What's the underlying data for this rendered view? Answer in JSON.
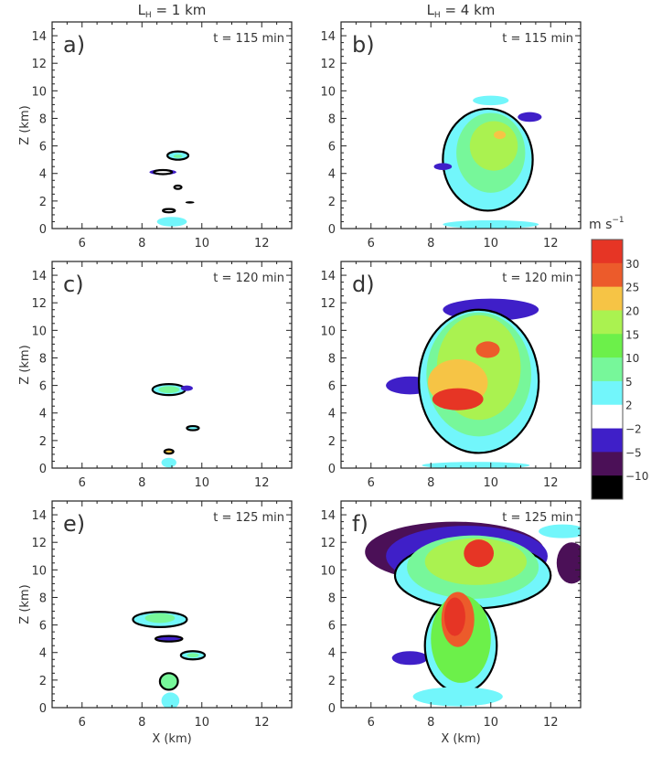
{
  "chart_data": {
    "type": "heatmap",
    "column_titles": [
      {
        "main": "L",
        "sub": "H",
        "rest": " = 1 km"
      },
      {
        "main": "L",
        "sub": "H",
        "rest": " = 4 km"
      }
    ],
    "xlabel": "X (km)",
    "ylabel": "Z (km)",
    "xlim": [
      5,
      13
    ],
    "ylim": [
      0,
      15
    ],
    "xticks": [
      6,
      8,
      10,
      12
    ],
    "yticks": [
      0,
      2,
      4,
      6,
      8,
      10,
      12,
      14
    ],
    "colorbar": {
      "unit_main": "m s",
      "unit_exp": "−1",
      "boundaries": [
        "30",
        "25",
        "20",
        "15",
        "10",
        "5",
        "2",
        "−2",
        "−5",
        "−10"
      ],
      "colors": [
        "#e63525",
        "#ec5b2b",
        "#f6c445",
        "#aaf250",
        "#6cf04a",
        "#77f79a",
        "#72f6fb",
        "#ffffff",
        "#3f1fc8",
        "#4b1057",
        "#000000"
      ]
    },
    "panels": [
      {
        "label": "a)",
        "time": "t = 115 min",
        "column": 0,
        "row": 0,
        "features": [
          {
            "x": 9.2,
            "z": 5.3,
            "rx": 0.35,
            "rz": 0.3,
            "band": 6,
            "outline": true
          },
          {
            "x": 9.2,
            "z": 5.25,
            "rx": 0.15,
            "rz": 0.12,
            "band": 5
          },
          {
            "x": 8.7,
            "z": 4.1,
            "rx": 0.45,
            "rz": 0.2,
            "band": 8
          },
          {
            "x": 8.7,
            "z": 4.1,
            "rx": 0.3,
            "rz": 0.15,
            "band": 7,
            "outline": true
          },
          {
            "x": 9.2,
            "z": 3.0,
            "rx": 0.12,
            "rz": 0.12,
            "band": 7,
            "outline": true
          },
          {
            "x": 9.6,
            "z": 1.9,
            "rx": 0.15,
            "rz": 0.08,
            "band": 10
          },
          {
            "x": 8.9,
            "z": 1.3,
            "rx": 0.2,
            "rz": 0.12,
            "band": 7,
            "outline": true
          },
          {
            "x": 9.0,
            "z": 0.5,
            "rx": 0.5,
            "rz": 0.35,
            "band": 6
          }
        ]
      },
      {
        "label": "b)",
        "time": "t = 115 min",
        "column": 1,
        "row": 0,
        "features": [
          {
            "x": 10.0,
            "z": 9.3,
            "rx": 0.6,
            "rz": 0.35,
            "band": 6
          },
          {
            "x": 9.9,
            "z": 5.0,
            "rx": 1.5,
            "rz": 3.7,
            "band": 6,
            "outline": true
          },
          {
            "x": 10.0,
            "z": 0.3,
            "rx": 1.6,
            "rz": 0.3,
            "band": 6
          },
          {
            "x": 10.0,
            "z": 5.5,
            "rx": 1.15,
            "rz": 2.9,
            "band": 5
          },
          {
            "x": 10.1,
            "z": 6.0,
            "rx": 0.8,
            "rz": 1.8,
            "band": 3
          },
          {
            "x": 10.3,
            "z": 6.8,
            "rx": 0.2,
            "rz": 0.3,
            "band": 2
          },
          {
            "x": 11.3,
            "z": 8.1,
            "rx": 0.4,
            "rz": 0.35,
            "band": 8
          },
          {
            "x": 8.4,
            "z": 4.5,
            "rx": 0.3,
            "rz": 0.25,
            "band": 8
          }
        ]
      },
      {
        "label": "c)",
        "time": "t = 120 min",
        "column": 0,
        "row": 1,
        "features": [
          {
            "x": 8.9,
            "z": 5.7,
            "rx": 0.55,
            "rz": 0.4,
            "band": 6,
            "outline": true
          },
          {
            "x": 8.9,
            "z": 5.7,
            "rx": 0.35,
            "rz": 0.25,
            "band": 5
          },
          {
            "x": 9.5,
            "z": 5.8,
            "rx": 0.2,
            "rz": 0.2,
            "band": 8
          },
          {
            "x": 9.7,
            "z": 2.9,
            "rx": 0.2,
            "rz": 0.15,
            "band": 6,
            "outline": true
          },
          {
            "x": 8.9,
            "z": 1.2,
            "rx": 0.15,
            "rz": 0.15,
            "band": 2,
            "outline": true
          },
          {
            "x": 8.9,
            "z": 0.4,
            "rx": 0.25,
            "rz": 0.35,
            "band": 6
          }
        ]
      },
      {
        "label": "d)",
        "time": "t = 120 min",
        "column": 1,
        "row": 1,
        "features": [
          {
            "x": 10.0,
            "z": 11.5,
            "rx": 1.6,
            "rz": 0.8,
            "band": 8
          },
          {
            "x": 7.3,
            "z": 6.0,
            "rx": 0.8,
            "rz": 0.65,
            "band": 8
          },
          {
            "x": 9.6,
            "z": 6.3,
            "rx": 2.0,
            "rz": 5.2,
            "band": 6,
            "outline": true
          },
          {
            "x": 9.6,
            "z": 6.8,
            "rx": 1.75,
            "rz": 4.5,
            "band": 5
          },
          {
            "x": 9.6,
            "z": 7.3,
            "rx": 1.4,
            "rz": 3.8,
            "band": 3
          },
          {
            "x": 8.9,
            "z": 6.2,
            "rx": 1.0,
            "rz": 1.7,
            "band": 2
          },
          {
            "x": 8.9,
            "z": 5.0,
            "rx": 0.85,
            "rz": 0.8,
            "band": 0
          },
          {
            "x": 9.9,
            "z": 8.6,
            "rx": 0.4,
            "rz": 0.6,
            "band": 1
          },
          {
            "x": 9.5,
            "z": 0.2,
            "rx": 1.8,
            "rz": 0.25,
            "band": 6
          }
        ]
      },
      {
        "label": "e)",
        "time": "t = 125 min",
        "column": 0,
        "row": 2,
        "features": [
          {
            "x": 8.6,
            "z": 6.4,
            "rx": 0.9,
            "rz": 0.55,
            "band": 6,
            "outline": true
          },
          {
            "x": 8.6,
            "z": 6.5,
            "rx": 0.5,
            "rz": 0.35,
            "band": 5
          },
          {
            "x": 8.9,
            "z": 5.0,
            "rx": 0.45,
            "rz": 0.2,
            "band": 8,
            "outline": true
          },
          {
            "x": 9.7,
            "z": 3.8,
            "rx": 0.4,
            "rz": 0.3,
            "band": 6,
            "outline": true
          },
          {
            "x": 9.7,
            "z": 3.8,
            "rx": 0.2,
            "rz": 0.15,
            "band": 5
          },
          {
            "x": 8.9,
            "z": 1.9,
            "rx": 0.3,
            "rz": 0.6,
            "band": 5,
            "outline": true
          },
          {
            "x": 8.95,
            "z": 0.5,
            "rx": 0.3,
            "rz": 0.6,
            "band": 6
          }
        ]
      },
      {
        "label": "f)",
        "time": "t = 125 min",
        "column": 1,
        "row": 2,
        "features": [
          {
            "x": 8.8,
            "z": 11.3,
            "rx": 3.0,
            "rz": 2.2,
            "band": 9
          },
          {
            "x": 9.2,
            "z": 11.0,
            "rx": 2.7,
            "rz": 2.2,
            "band": 8
          },
          {
            "x": 12.4,
            "z": 12.8,
            "rx": 0.8,
            "rz": 0.5,
            "band": 6
          },
          {
            "x": 12.7,
            "z": 10.5,
            "rx": 0.5,
            "rz": 1.5,
            "band": 9
          },
          {
            "x": 9.4,
            "z": 9.6,
            "rx": 2.6,
            "rz": 2.4,
            "band": 6,
            "outline": true
          },
          {
            "x": 9.4,
            "z": 10.2,
            "rx": 2.2,
            "rz": 2.3,
            "band": 5
          },
          {
            "x": 9.5,
            "z": 10.6,
            "rx": 1.7,
            "rz": 1.7,
            "band": 3
          },
          {
            "x": 9.6,
            "z": 11.2,
            "rx": 0.5,
            "rz": 1.0,
            "band": 0
          },
          {
            "x": 7.3,
            "z": 3.6,
            "rx": 0.6,
            "rz": 0.5,
            "band": 8
          },
          {
            "x": 9.0,
            "z": 4.5,
            "rx": 1.2,
            "rz": 3.4,
            "band": 6,
            "outline": true
          },
          {
            "x": 9.0,
            "z": 5.0,
            "rx": 1.0,
            "rz": 3.2,
            "band": 4
          },
          {
            "x": 8.9,
            "z": 6.4,
            "rx": 0.55,
            "rz": 2.0,
            "band": 1
          },
          {
            "x": 8.8,
            "z": 6.6,
            "rx": 0.35,
            "rz": 1.4,
            "band": 0
          },
          {
            "x": 8.9,
            "z": 0.8,
            "rx": 1.5,
            "rz": 0.7,
            "band": 6
          }
        ]
      }
    ]
  }
}
